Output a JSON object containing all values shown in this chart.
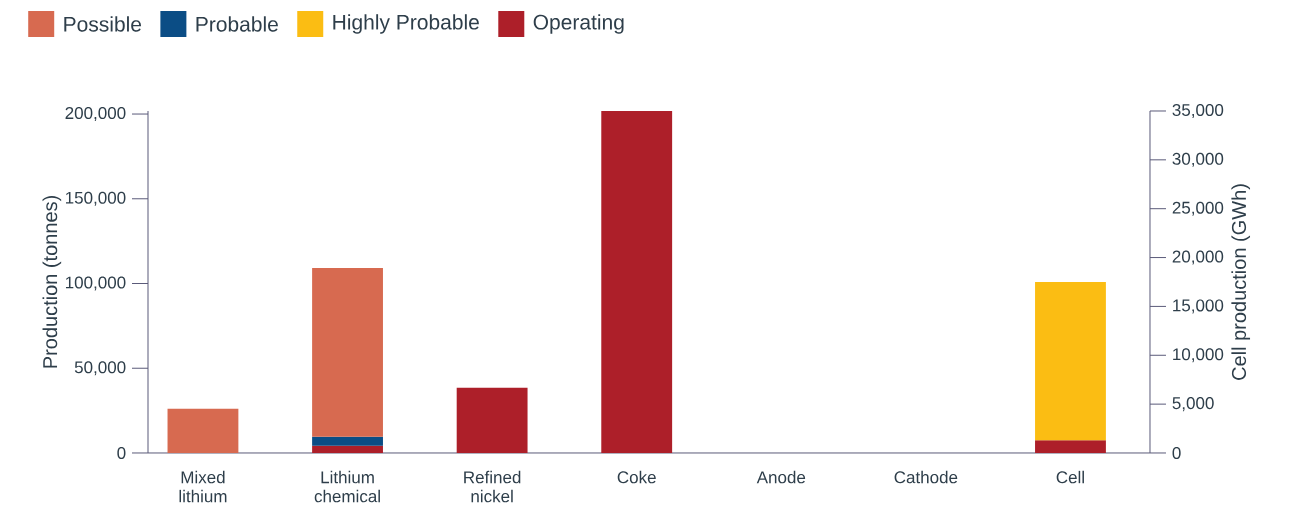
{
  "chart_data": {
    "type": "bar",
    "stacked": true,
    "ylabel": "Production (tonnes)",
    "y2label": "Cell production (GWh)",
    "categories": [
      "Mixed lithium",
      "Lithium chemical",
      "Refined nickel",
      "Coke",
      "Anode",
      "Cathode",
      "Cell"
    ],
    "series": [
      {
        "color": "#ad1f29",
        "axis": "y2",
        "values": [
          null,
          null,
          null,
          null,
          null,
          null,
          1300
        ]
      },
      {
        "name": "Operating",
        "color": "#ad1f29",
        "values": [
          null,
          4300,
          38500,
          201800,
          null,
          null,
          null
        ]
      },
      {
        "name": "Highly Probable",
        "color": "#fbbd13",
        "axis": "y2",
        "values": [
          null,
          null,
          null,
          null,
          null,
          null,
          16200
        ]
      },
      {
        "name": "Probable",
        "color": "#0b4d85",
        "values": [
          null,
          5300,
          null,
          null,
          null,
          null,
          null
        ]
      },
      {
        "name": "Possible",
        "color": "#d76a50",
        "values": [
          26100,
          99600,
          null,
          null,
          null,
          null,
          null
        ]
      }
    ],
    "ylim": [
      0,
      201800
    ],
    "yticks": [
      0,
      {
        "value": 50000,
        "label": "50,000"
      },
      {
        "value": 100000,
        "label": "100,000"
      },
      {
        "value": 150000,
        "label": "150,000"
      },
      {
        "value": 200000,
        "label": "200,000"
      }
    ],
    "y2lim": [
      0,
      35000
    ],
    "y2ticks": [
      0,
      {
        "value": 5000,
        "label": "5,000"
      },
      {
        "value": 10000,
        "label": "10,000"
      },
      {
        "value": 15000,
        "label": "15,000"
      },
      {
        "value": 20000,
        "label": "20,000"
      },
      {
        "value": 25000,
        "label": "25,000"
      },
      {
        "value": 30000,
        "label": "30,000"
      },
      {
        "value": 35000,
        "label": "35,000"
      }
    ],
    "legend": "top left",
    "grid": false
  }
}
